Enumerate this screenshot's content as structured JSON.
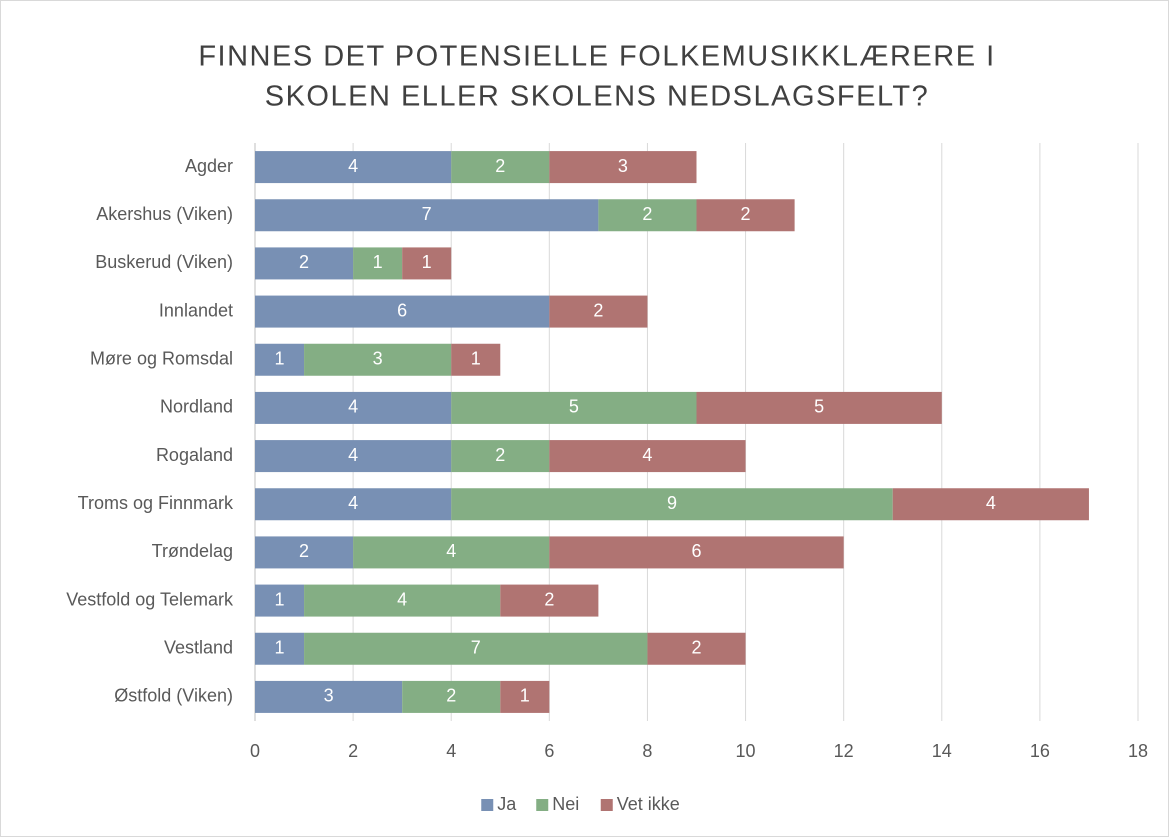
{
  "chart_data": {
    "type": "bar",
    "orientation": "horizontal",
    "stacked": true,
    "title": [
      "FINNES DET POTENSIELLE FOLKEMUSIKKLÆRERE I",
      "SKOLEN ELLER SKOLENS NEDSLAGSFELT?"
    ],
    "categories": [
      "Agder",
      "Akershus (Viken)",
      "Buskerud (Viken)",
      "Innlandet",
      "Møre og Romsdal",
      "Nordland",
      "Rogaland",
      "Troms og Finnmark",
      "Trøndelag",
      "Vestfold og Telemark",
      "Vestland",
      "Østfold (Viken)"
    ],
    "series": [
      {
        "name": "Ja",
        "color": "#7890b4",
        "values": [
          4,
          7,
          2,
          6,
          1,
          4,
          4,
          4,
          2,
          1,
          1,
          3
        ]
      },
      {
        "name": "Nei",
        "color": "#84ae84",
        "values": [
          2,
          2,
          1,
          0,
          3,
          5,
          2,
          9,
          4,
          4,
          7,
          2
        ]
      },
      {
        "name": "Vet ikke",
        "color": "#b07472",
        "values": [
          3,
          2,
          1,
          2,
          1,
          5,
          4,
          4,
          6,
          2,
          2,
          1
        ]
      }
    ],
    "xlim": [
      0,
      18
    ],
    "xticks": [
      0,
      2,
      4,
      6,
      8,
      10,
      12,
      14,
      16,
      18
    ],
    "grid": true,
    "legend": "bottom"
  }
}
